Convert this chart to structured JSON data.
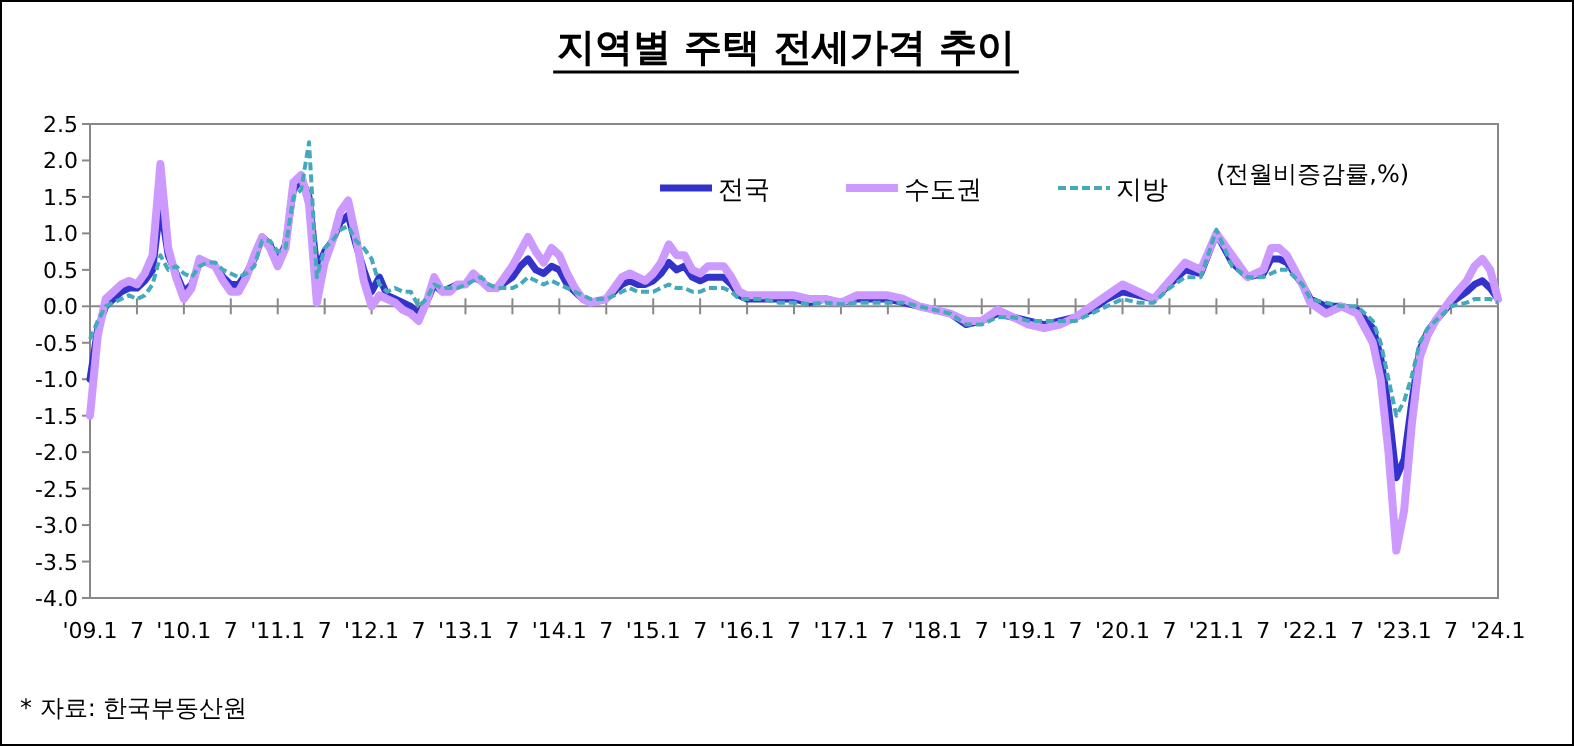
{
  "chart_data": {
    "type": "line",
    "title": "지역별 주택 전세가격 추이",
    "x": [
      "2009-01",
      "2009-02",
      "2009-03",
      "2009-04",
      "2009-05",
      "2009-06",
      "2009-07",
      "2009-08",
      "2009-09",
      "2009-10",
      "2009-11",
      "2009-12",
      "2010-01",
      "2010-02",
      "2010-03",
      "2010-04",
      "2010-05",
      "2010-06",
      "2010-07",
      "2010-08",
      "2010-09",
      "2010-10",
      "2010-11",
      "2010-12",
      "2011-01",
      "2011-02",
      "2011-03",
      "2011-04",
      "2011-05",
      "2011-06",
      "2011-07",
      "2011-08",
      "2011-09",
      "2011-10",
      "2011-11",
      "2011-12",
      "2012-01",
      "2012-02",
      "2012-03",
      "2012-04",
      "2012-05",
      "2012-06",
      "2012-07",
      "2012-08",
      "2012-09",
      "2012-10",
      "2012-11",
      "2012-12",
      "2013-01",
      "2013-02",
      "2013-03",
      "2013-04",
      "2013-05",
      "2013-07",
      "2013-08",
      "2013-09",
      "2013-10",
      "2013-11",
      "2013-12",
      "2014-01",
      "2014-02",
      "2014-03",
      "2014-04",
      "2014-05",
      "2014-07",
      "2014-08",
      "2014-09",
      "2014-10",
      "2014-11",
      "2014-12",
      "2015-01",
      "2015-02",
      "2015-03",
      "2015-04",
      "2015-05",
      "2015-06",
      "2015-07",
      "2015-08",
      "2015-09",
      "2015-10",
      "2015-11",
      "2015-12",
      "2016-01",
      "2016-03",
      "2016-05",
      "2016-07",
      "2016-09",
      "2016-11",
      "2017-01",
      "2017-03",
      "2017-05",
      "2017-07",
      "2017-09",
      "2017-11",
      "2018-01",
      "2018-03",
      "2018-05",
      "2018-07",
      "2018-09",
      "2018-11",
      "2019-01",
      "2019-03",
      "2019-05",
      "2019-07",
      "2019-09",
      "2019-11",
      "2020-01",
      "2020-03",
      "2020-05",
      "2020-07",
      "2020-09",
      "2020-11",
      "2021-01",
      "2021-03",
      "2021-05",
      "2021-07",
      "2021-08",
      "2021-09",
      "2021-10",
      "2021-12",
      "2022-01",
      "2022-03",
      "2022-05",
      "2022-07",
      "2022-09",
      "2022-10",
      "2022-11",
      "2022-12",
      "2023-01",
      "2023-02",
      "2023-03",
      "2023-04",
      "2023-05",
      "2023-07",
      "2023-09",
      "2023-10",
      "2023-11",
      "2023-12",
      "2024-01"
    ],
    "series": [
      {
        "name": "전국",
        "color": "#3333cc",
        "values": [
          -1.0,
          -0.3,
          0.0,
          0.1,
          0.2,
          0.25,
          0.25,
          0.35,
          0.5,
          1.4,
          0.7,
          0.45,
          0.2,
          0.3,
          0.6,
          0.6,
          0.55,
          0.4,
          0.3,
          0.3,
          0.45,
          0.65,
          0.95,
          0.85,
          0.6,
          0.85,
          1.6,
          1.75,
          1.5,
          0.5,
          0.75,
          0.9,
          1.15,
          1.25,
          0.85,
          0.5,
          0.2,
          0.4,
          0.15,
          0.1,
          0.05,
          0.0,
          -0.1,
          0.05,
          0.3,
          0.2,
          0.25,
          0.3,
          0.3,
          0.4,
          0.35,
          0.25,
          0.25,
          0.4,
          0.55,
          0.65,
          0.5,
          0.45,
          0.55,
          0.5,
          0.3,
          0.2,
          0.1,
          0.05,
          0.1,
          0.2,
          0.3,
          0.35,
          0.3,
          0.3,
          0.35,
          0.45,
          0.6,
          0.5,
          0.55,
          0.4,
          0.35,
          0.4,
          0.4,
          0.4,
          0.3,
          0.15,
          0.1,
          0.1,
          0.1,
          0.1,
          0.05,
          0.1,
          0.05,
          0.1,
          0.1,
          0.1,
          0.05,
          0.0,
          -0.05,
          -0.1,
          -0.25,
          -0.2,
          -0.1,
          -0.15,
          -0.2,
          -0.25,
          -0.2,
          -0.15,
          -0.05,
          0.1,
          0.2,
          0.15,
          0.1,
          0.3,
          0.5,
          0.45,
          1.0,
          0.6,
          0.4,
          0.45,
          0.65,
          0.65,
          0.6,
          0.3,
          0.1,
          0.0,
          0.0,
          -0.05,
          -0.3,
          -0.7,
          -1.4,
          -2.35,
          -2.1,
          -1.3,
          -0.6,
          -0.35,
          -0.2,
          0.05,
          0.2,
          0.3,
          0.35,
          0.25,
          0.1
        ]
      },
      {
        "name": "수도권",
        "color": "#cc99ff",
        "values": [
          -1.5,
          -0.4,
          0.1,
          0.2,
          0.3,
          0.35,
          0.3,
          0.45,
          0.7,
          1.95,
          0.8,
          0.4,
          0.1,
          0.25,
          0.65,
          0.6,
          0.55,
          0.35,
          0.2,
          0.2,
          0.4,
          0.7,
          0.95,
          0.8,
          0.55,
          0.8,
          1.7,
          1.8,
          1.4,
          0.05,
          0.6,
          0.9,
          1.3,
          1.45,
          0.95,
          0.35,
          0.0,
          0.15,
          0.1,
          0.05,
          -0.05,
          -0.1,
          -0.2,
          0.05,
          0.4,
          0.2,
          0.2,
          0.3,
          0.3,
          0.45,
          0.35,
          0.25,
          0.25,
          0.55,
          0.75,
          0.95,
          0.75,
          0.6,
          0.8,
          0.7,
          0.45,
          0.25,
          0.1,
          0.05,
          0.1,
          0.25,
          0.4,
          0.45,
          0.4,
          0.35,
          0.45,
          0.6,
          0.85,
          0.7,
          0.7,
          0.5,
          0.45,
          0.55,
          0.55,
          0.55,
          0.4,
          0.2,
          0.15,
          0.15,
          0.15,
          0.15,
          0.1,
          0.1,
          0.05,
          0.15,
          0.15,
          0.15,
          0.1,
          0.0,
          -0.05,
          -0.1,
          -0.2,
          -0.2,
          -0.05,
          -0.15,
          -0.25,
          -0.3,
          -0.25,
          -0.15,
          0.0,
          0.15,
          0.3,
          0.2,
          0.1,
          0.35,
          0.6,
          0.5,
          1.0,
          0.7,
          0.4,
          0.5,
          0.8,
          0.8,
          0.7,
          0.3,
          0.05,
          -0.1,
          0.0,
          -0.1,
          -0.5,
          -1.0,
          -2.0,
          -3.35,
          -2.8,
          -1.6,
          -0.7,
          -0.4,
          -0.2,
          0.1,
          0.35,
          0.55,
          0.65,
          0.5,
          0.1
        ]
      },
      {
        "name": "지방",
        "color": "#44aabb",
        "line_style": "dashed",
        "values": [
          -0.45,
          -0.2,
          0.0,
          0.05,
          0.1,
          0.15,
          0.1,
          0.15,
          0.3,
          0.7,
          0.5,
          0.55,
          0.45,
          0.4,
          0.55,
          0.6,
          0.6,
          0.5,
          0.45,
          0.4,
          0.45,
          0.55,
          0.9,
          0.9,
          0.75,
          0.8,
          1.5,
          1.6,
          2.25,
          0.4,
          0.8,
          0.9,
          1.05,
          1.1,
          0.9,
          0.8,
          0.65,
          0.3,
          0.2,
          0.25,
          0.2,
          0.2,
          0.0,
          0.1,
          0.3,
          0.25,
          0.25,
          0.25,
          0.3,
          0.35,
          0.4,
          0.3,
          0.25,
          0.25,
          0.3,
          0.4,
          0.35,
          0.3,
          0.35,
          0.3,
          0.25,
          0.2,
          0.15,
          0.1,
          0.1,
          0.15,
          0.2,
          0.25,
          0.2,
          0.2,
          0.2,
          0.25,
          0.3,
          0.25,
          0.25,
          0.2,
          0.2,
          0.25,
          0.25,
          0.25,
          0.2,
          0.1,
          0.1,
          0.1,
          0.05,
          0.05,
          0.03,
          0.05,
          0.03,
          0.05,
          0.05,
          0.05,
          0.05,
          0.0,
          -0.05,
          -0.1,
          -0.25,
          -0.25,
          -0.15,
          -0.15,
          -0.2,
          -0.2,
          -0.2,
          -0.2,
          -0.1,
          0.0,
          0.1,
          0.05,
          0.05,
          0.25,
          0.4,
          0.4,
          1.05,
          0.55,
          0.4,
          0.4,
          0.45,
          0.5,
          0.5,
          0.3,
          0.1,
          0.05,
          0.0,
          0.0,
          -0.2,
          -0.5,
          -1.0,
          -1.5,
          -1.3,
          -0.95,
          -0.5,
          -0.3,
          -0.2,
          0.0,
          0.05,
          0.1,
          0.1,
          0.1,
          0.05
        ]
      }
    ],
    "xlim": [
      "2009-01",
      "2024-01"
    ],
    "xticks": [
      {
        "value": "2009-01",
        "label": "'09.1"
      },
      {
        "value": "2009-07",
        "label": "7"
      },
      {
        "value": "2010-01",
        "label": "'10.1"
      },
      {
        "value": "2010-07",
        "label": "7"
      },
      {
        "value": "2011-01",
        "label": "'11.1"
      },
      {
        "value": "2011-07",
        "label": "7"
      },
      {
        "value": "2012-01",
        "label": "'12.1"
      },
      {
        "value": "2012-07",
        "label": "7"
      },
      {
        "value": "2013-01",
        "label": "'13.1"
      },
      {
        "value": "2013-07",
        "label": "7"
      },
      {
        "value": "2014-01",
        "label": "'14.1"
      },
      {
        "value": "2014-07",
        "label": "7"
      },
      {
        "value": "2015-01",
        "label": "'15.1"
      },
      {
        "value": "2015-07",
        "label": "7"
      },
      {
        "value": "2016-01",
        "label": "'16.1"
      },
      {
        "value": "2016-07",
        "label": "7"
      },
      {
        "value": "2017-01",
        "label": "'17.1"
      },
      {
        "value": "2017-07",
        "label": "7"
      },
      {
        "value": "2018-01",
        "label": "'18.1"
      },
      {
        "value": "2018-07",
        "label": "7"
      },
      {
        "value": "2019-01",
        "label": "'19.1"
      },
      {
        "value": "2019-07",
        "label": "7"
      },
      {
        "value": "2020-01",
        "label": "'20.1"
      },
      {
        "value": "2020-07",
        "label": "7"
      },
      {
        "value": "2021-01",
        "label": "'21.1"
      },
      {
        "value": "2021-07",
        "label": "7"
      },
      {
        "value": "2022-01",
        "label": "'22.1"
      },
      {
        "value": "2022-07",
        "label": "7"
      },
      {
        "value": "2023-01",
        "label": "'23.1"
      },
      {
        "value": "2023-07",
        "label": "7"
      },
      {
        "value": "2024-01",
        "label": "'24.1"
      }
    ],
    "ylim": [
      -4.0,
      2.5
    ],
    "yticks": [
      {
        "value": 2.5,
        "label": "2.5"
      },
      {
        "value": 2.0,
        "label": "2.0"
      },
      {
        "value": 1.5,
        "label": "1.5"
      },
      {
        "value": 1.0,
        "label": "1.0"
      },
      {
        "value": 0.5,
        "label": "0.5"
      },
      {
        "value": 0,
        "label": "0.0"
      },
      {
        "value": -0.5,
        "label": "-0.5"
      },
      {
        "value": -1.0,
        "label": "-1.0"
      },
      {
        "value": -1.5,
        "label": "-1.5"
      },
      {
        "value": -2.0,
        "label": "-2.0"
      },
      {
        "value": -2.5,
        "label": "-2.5"
      },
      {
        "value": -3.0,
        "label": "-3.0"
      },
      {
        "value": -3.5,
        "label": "-3.5"
      },
      {
        "value": -4.0,
        "label": "-4.0"
      }
    ],
    "legend": "top right",
    "annotations": [
      "(전월비증감률,%)",
      "* 자료: 한국부동산원"
    ]
  }
}
